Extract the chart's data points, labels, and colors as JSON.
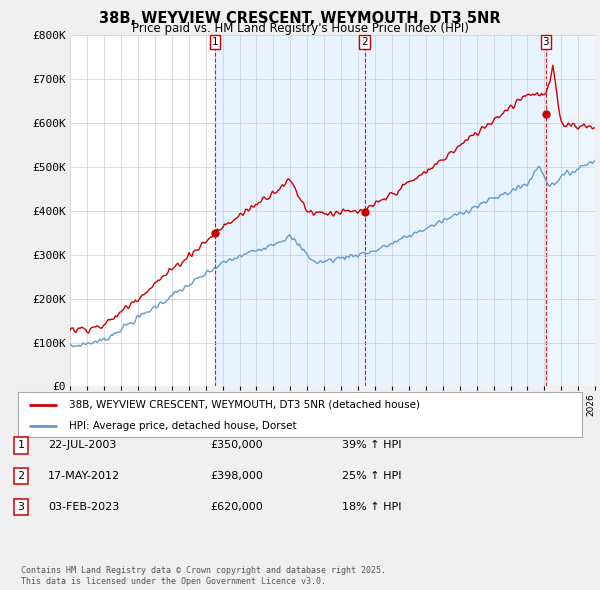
{
  "title_line1": "38B, WEYVIEW CRESCENT, WEYMOUTH, DT3 5NR",
  "title_line2": "Price paid vs. HM Land Registry's House Price Index (HPI)",
  "background_color": "#f0f0f0",
  "plot_bg_color": "#ffffff",
  "ylim": [
    0,
    800000
  ],
  "yticks": [
    0,
    100000,
    200000,
    300000,
    400000,
    500000,
    600000,
    700000,
    800000
  ],
  "ytick_labels": [
    "£0",
    "£100K",
    "£200K",
    "£300K",
    "£400K",
    "£500K",
    "£600K",
    "£700K",
    "£800K"
  ],
  "sale_dates": [
    2003.55,
    2012.38,
    2023.09
  ],
  "sale_prices": [
    350000,
    398000,
    620000
  ],
  "sale_labels": [
    "1",
    "2",
    "3"
  ],
  "vline_color": "#cc0000",
  "red_line_color": "#cc0000",
  "blue_line_color": "#6699cc",
  "shade_color": "#ddeeff",
  "legend_label_red": "38B, WEYVIEW CRESCENT, WEYMOUTH, DT3 5NR (detached house)",
  "legend_label_blue": "HPI: Average price, detached house, Dorset",
  "table_entries": [
    {
      "num": "1",
      "date": "22-JUL-2003",
      "price": "£350,000",
      "hpi": "39% ↑ HPI"
    },
    {
      "num": "2",
      "date": "17-MAY-2012",
      "price": "£398,000",
      "hpi": "25% ↑ HPI"
    },
    {
      "num": "3",
      "date": "03-FEB-2023",
      "price": "£620,000",
      "hpi": "18% ↑ HPI"
    }
  ],
  "footer": "Contains HM Land Registry data © Crown copyright and database right 2025.\nThis data is licensed under the Open Government Licence v3.0.",
  "xmin": 1995,
  "xmax": 2026
}
